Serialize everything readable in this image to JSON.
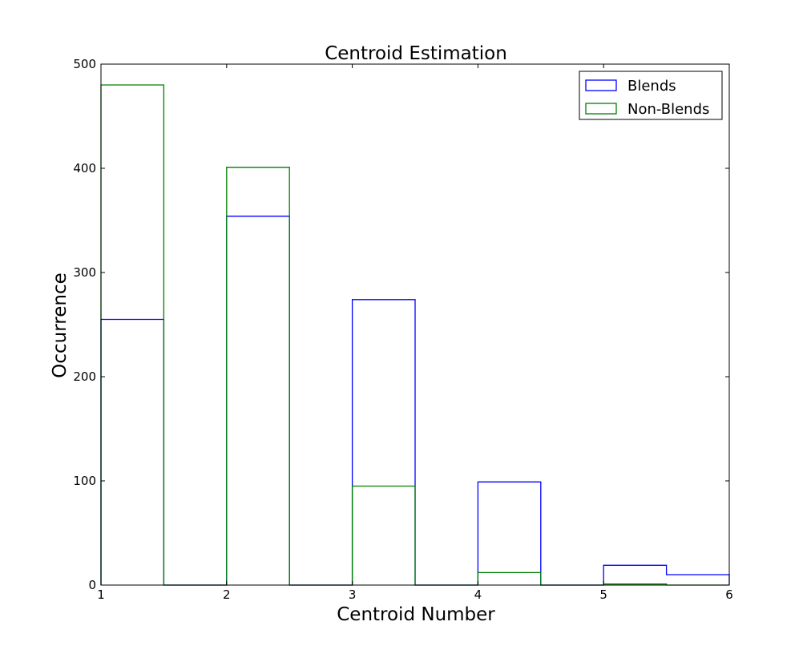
{
  "chart_data": {
    "type": "bar",
    "title": "Centroid Estimation",
    "xlabel": "Centroid Number",
    "ylabel": "Occurrence",
    "xlim": [
      1,
      6
    ],
    "ylim": [
      0,
      500
    ],
    "xticks": [
      "1",
      "2",
      "3",
      "4",
      "5",
      "6"
    ],
    "yticks": [
      "0",
      "100",
      "200",
      "300",
      "400",
      "500"
    ],
    "bin_edges": [
      1.0,
      1.5,
      2.0,
      2.5,
      3.0,
      3.5,
      4.0,
      4.5,
      5.0,
      5.5,
      6.0
    ],
    "grid": false,
    "legend_position": "top-right",
    "series": [
      {
        "name": "Blends",
        "color": "#0000ff",
        "values": [
          255,
          0,
          354,
          0,
          274,
          0,
          99,
          0,
          19,
          10
        ]
      },
      {
        "name": "Non-Blends",
        "color": "#008000",
        "values": [
          480,
          0,
          401,
          0,
          95,
          0,
          12,
          0,
          1,
          0
        ]
      }
    ]
  }
}
